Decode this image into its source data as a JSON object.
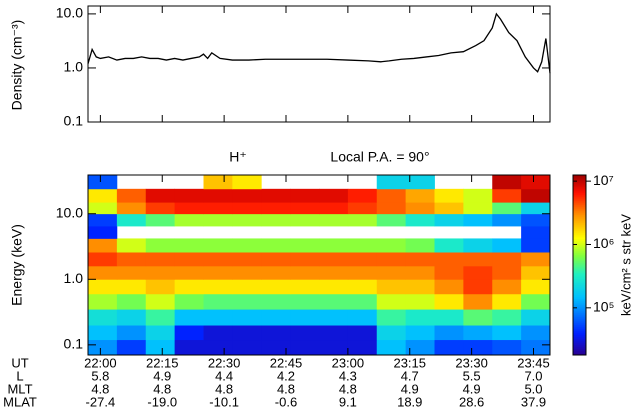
{
  "chart_data": [
    {
      "type": "line",
      "y_label": "Density (cm⁻³)",
      "x": [
        "21:57",
        "21:58",
        "21:59",
        "22:00",
        "22:02",
        "22:04",
        "22:06",
        "22:08",
        "22:10",
        "22:12",
        "22:14",
        "22:16",
        "22:18",
        "22:20",
        "22:22",
        "22:24",
        "22:25",
        "22:26",
        "22:27",
        "22:29",
        "22:32",
        "22:36",
        "22:40",
        "22:45",
        "22:50",
        "22:55",
        "23:00",
        "23:05",
        "23:08",
        "23:10",
        "23:13",
        "23:16",
        "23:19",
        "23:22",
        "23:25",
        "23:28",
        "23:31",
        "23:33",
        "23:35",
        "23:36",
        "23:37",
        "23:39",
        "23:41",
        "23:43",
        "23:45",
        "23:46",
        "23:47",
        "23:48",
        "23:49"
      ],
      "series": [
        {
          "color": "#000000",
          "values": [
            1.2,
            2.2,
            1.6,
            1.5,
            1.6,
            1.4,
            1.5,
            1.5,
            1.6,
            1.5,
            1.5,
            1.4,
            1.5,
            1.4,
            1.5,
            1.6,
            1.8,
            1.5,
            1.9,
            1.5,
            1.4,
            1.4,
            1.45,
            1.45,
            1.45,
            1.45,
            1.4,
            1.35,
            1.3,
            1.35,
            1.45,
            1.5,
            1.6,
            1.7,
            1.9,
            2.0,
            2.6,
            3.2,
            5.5,
            10,
            8,
            4.5,
            3.2,
            1.6,
            1.0,
            0.85,
            1.3,
            3.5,
            0.8
          ]
        }
      ],
      "xlim": [
        "21:57",
        "23:49"
      ],
      "xticks": [
        "22:00",
        "22:15",
        "22:30",
        "22:45",
        "23:00",
        "23:15",
        "23:30",
        "23:45"
      ],
      "show_xtick_labels": false,
      "ylim": [
        0.1,
        14
      ],
      "yticks": [
        0.1,
        {
          "value": 1,
          "label": "1.0"
        },
        {
          "value": 10,
          "label": "10.0"
        }
      ],
      "y_log": true
    },
    {
      "type": "heatmap",
      "title": "H⁺",
      "subtitle": "Local P.A. = 90°",
      "y_label": "Energy (keV)",
      "x_edges": [
        "21:57",
        "22:04",
        "22:11",
        "22:18",
        "22:25",
        "22:32",
        "22:39",
        "22:46",
        "22:53",
        "23:00",
        "23:07",
        "23:14",
        "23:21",
        "23:28",
        "23:35",
        "23:42",
        "23:49"
      ],
      "y_edges": [
        0.07,
        0.12,
        0.2,
        0.35,
        0.6,
        1.0,
        1.6,
        2.6,
        4.2,
        6.5,
        10,
        15,
        24,
        39
      ],
      "values": [
        [
          100000.0,
          50000.0,
          150000.0,
          30000.0,
          30000.0,
          30000.0,
          30000.0,
          30000.0,
          30000.0,
          30000.0,
          150000.0,
          100000.0,
          50000.0,
          50000.0,
          60000.0,
          80000.0
        ],
        [
          150000.0,
          100000.0,
          200000.0,
          40000.0,
          30000.0,
          30000.0,
          30000.0,
          30000.0,
          30000.0,
          30000.0,
          200000.0,
          150000.0,
          100000.0,
          120000.0,
          150000.0,
          100000.0
        ],
        [
          250000.0,
          200000.0,
          400000.0,
          150000.0,
          150000.0,
          150000.0,
          150000.0,
          150000.0,
          150000.0,
          150000.0,
          400000.0,
          300000.0,
          300000.0,
          500000.0,
          400000.0,
          200000.0
        ],
        [
          800000.0,
          600000.0,
          1000000.0,
          600000.0,
          500000.0,
          500000.0,
          500000.0,
          500000.0,
          500000.0,
          500000.0,
          1000000.0,
          1000000.0,
          1500000.0,
          3000000.0,
          1500000.0,
          600000.0
        ],
        [
          1500000.0,
          1500000.0,
          2000000.0,
          1500000.0,
          1500000.0,
          1500000.0,
          1500000.0,
          1500000.0,
          1500000.0,
          1500000.0,
          2000000.0,
          2000000.0,
          3000000.0,
          5000000.0,
          3000000.0,
          1500000.0
        ],
        [
          3000000.0,
          3000000.0,
          3000000.0,
          3000000.0,
          3000000.0,
          3000000.0,
          3000000.0,
          3000000.0,
          3000000.0,
          3000000.0,
          3000000.0,
          3000000.0,
          4000000.0,
          5000000.0,
          4000000.0,
          2000000.0
        ],
        [
          5000000.0,
          4000000.0,
          4000000.0,
          4000000.0,
          4000000.0,
          4000000.0,
          4000000.0,
          4000000.0,
          4000000.0,
          4000000.0,
          4000000.0,
          4000000.0,
          4000000.0,
          4000000.0,
          4000000.0,
          3000000.0
        ],
        [
          3000000.0,
          1000000.0,
          700000.0,
          700000.0,
          700000.0,
          700000.0,
          700000.0,
          700000.0,
          700000.0,
          700000.0,
          700000.0,
          600000.0,
          300000.0,
          200000.0,
          150000.0,
          50000.0
        ],
        [
          40000.0,
          null,
          null,
          null,
          null,
          null,
          null,
          null,
          null,
          null,
          null,
          null,
          null,
          null,
          null,
          50000.0
        ],
        [
          50000.0,
          300000.0,
          500000.0,
          800000.0,
          800000.0,
          800000.0,
          800000.0,
          800000.0,
          800000.0,
          800000.0,
          500000.0,
          300000.0,
          200000.0,
          150000.0,
          100000.0,
          60000.0
        ],
        [
          1000000.0,
          3000000.0,
          5000000.0,
          6000000.0,
          6000000.0,
          6000000.0,
          6000000.0,
          6000000.0,
          6000000.0,
          5000000.0,
          4000000.0,
          3000000.0,
          2000000.0,
          1000000.0,
          500000.0,
          200000.0
        ],
        [
          1500000.0,
          4000000.0,
          8000000.0,
          8000000.0,
          8000000.0,
          8000000.0,
          8000000.0,
          8000000.0,
          8000000.0,
          6000000.0,
          4000000.0,
          2500000.0,
          1500000.0,
          1000000.0,
          5000000.0,
          10000000.0
        ],
        [
          60000.0,
          null,
          null,
          null,
          2000000.0,
          1500000.0,
          null,
          null,
          null,
          null,
          200000.0,
          200000.0,
          null,
          null,
          10000000.0,
          8000000.0
        ]
      ],
      "xlim": [
        "21:57",
        "23:49"
      ],
      "xticks": [
        "22:00",
        "22:15",
        "22:30",
        "22:45",
        "23:00",
        "23:15",
        "23:30",
        "23:45"
      ],
      "show_xtick_labels": true,
      "ylim": [
        0.07,
        39
      ],
      "yticks": [
        0.1,
        {
          "value": 1,
          "label": "1.0"
        },
        {
          "value": 10,
          "label": "10.0"
        }
      ],
      "y_log": true,
      "z_label": "keV/cm² s str keV",
      "zlim": [
        18000,
        12500000
      ],
      "z_log": true,
      "zticks": [
        {
          "value": 100000,
          "label": "10⁵"
        },
        {
          "value": 1000000,
          "label": "10⁶"
        },
        {
          "value": 10000000,
          "label": "10⁷"
        }
      ]
    }
  ],
  "ephemeris": {
    "ut_label": "UT",
    "rows": [
      {
        "label": "L",
        "values": [
          "5.8",
          "4.9",
          "4.4",
          "4.2",
          "4.3",
          "4.7",
          "5.5",
          "7.0"
        ]
      },
      {
        "label": "MLT",
        "values": [
          "4.8",
          "4.8",
          "4.8",
          "4.8",
          "4.8",
          "4.9",
          "4.9",
          "5.0"
        ]
      },
      {
        "label": "MLAT",
        "values": [
          "-27.4",
          "-19.0",
          "-10.1",
          "-0.6",
          "9.1",
          "18.9",
          "28.6",
          "37.9"
        ]
      }
    ]
  }
}
